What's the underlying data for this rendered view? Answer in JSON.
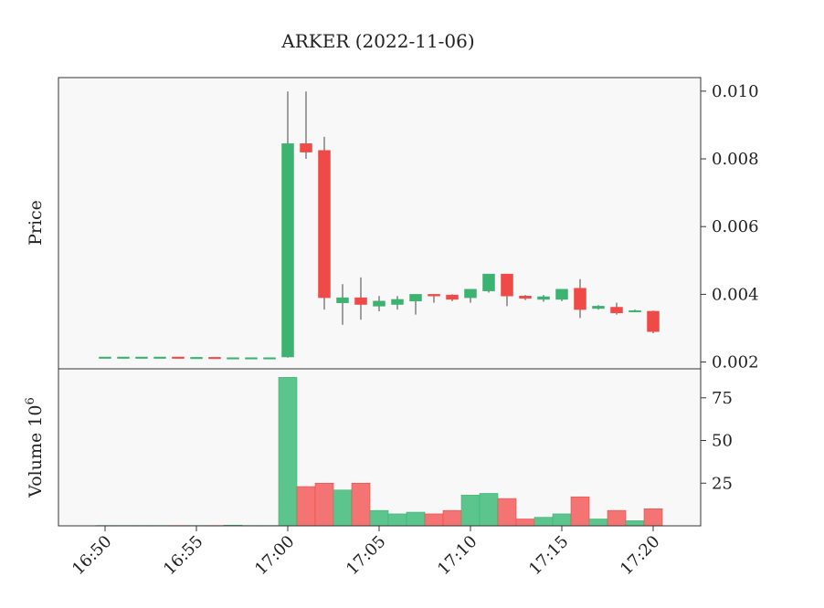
{
  "chart_data": {
    "type": "candlestick",
    "title": "ARKER (2022-11-06)",
    "price_panel": {
      "ylabel": "Price",
      "ylim": [
        0.0018,
        0.0104
      ],
      "yticks": [
        0.002,
        0.004,
        0.006,
        0.008,
        0.01
      ],
      "ytick_labels": [
        "0.002",
        "0.004",
        "0.006",
        "0.008",
        "0.010"
      ]
    },
    "volume_panel": {
      "ylabel": "Volume",
      "ylabel_exponent": "6",
      "ylim": [
        0,
        92
      ],
      "yticks": [
        25,
        50,
        75
      ],
      "ytick_labels": [
        "25",
        "50",
        "75"
      ]
    },
    "x_ticks": [
      {
        "minute": 0,
        "label": "16:50"
      },
      {
        "minute": 5,
        "label": "16:55"
      },
      {
        "minute": 10,
        "label": "17:00"
      },
      {
        "minute": 15,
        "label": "17:05"
      },
      {
        "minute": 20,
        "label": "17:10"
      },
      {
        "minute": 25,
        "label": "17:15"
      },
      {
        "minute": 30,
        "label": "17:20"
      }
    ],
    "colors": {
      "up": "#3cb371",
      "down": "#f04a48",
      "up_volume": "#5bc58d",
      "down_volume": "#f37472",
      "wick": "#444444"
    },
    "candles": [
      {
        "t": "16:50",
        "o": 0.00215,
        "h": 0.00215,
        "l": 0.00215,
        "c": 0.00215,
        "v": 0.2
      },
      {
        "t": "16:51",
        "o": 0.00215,
        "h": 0.00215,
        "l": 0.00215,
        "c": 0.00215,
        "v": 0.2
      },
      {
        "t": "16:52",
        "o": 0.00215,
        "h": 0.00215,
        "l": 0.00215,
        "c": 0.00215,
        "v": 0.2
      },
      {
        "t": "16:53",
        "o": 0.00214,
        "h": 0.00214,
        "l": 0.00214,
        "c": 0.00215,
        "v": 0.2
      },
      {
        "t": "16:54",
        "o": 0.00215,
        "h": 0.00215,
        "l": 0.00214,
        "c": 0.00214,
        "v": 0.2
      },
      {
        "t": "16:55",
        "o": 0.00214,
        "h": 0.00214,
        "l": 0.00214,
        "c": 0.00214,
        "v": 0.2
      },
      {
        "t": "16:56",
        "o": 0.00214,
        "h": 0.00214,
        "l": 0.00213,
        "c": 0.00213,
        "v": 0.2
      },
      {
        "t": "16:57",
        "o": 0.00213,
        "h": 0.00213,
        "l": 0.00213,
        "c": 0.00213,
        "v": 0.4
      },
      {
        "t": "16:58",
        "o": 0.00213,
        "h": 0.00213,
        "l": 0.00213,
        "c": 0.00213,
        "v": 0.2
      },
      {
        "t": "16:59",
        "o": 0.00213,
        "h": 0.00213,
        "l": 0.00213,
        "c": 0.00213,
        "v": 0.2
      },
      {
        "t": "17:00",
        "o": 0.00215,
        "h": 0.00999,
        "l": 0.00213,
        "c": 0.00845,
        "v": 87
      },
      {
        "t": "17:01",
        "o": 0.00845,
        "h": 0.00999,
        "l": 0.008,
        "c": 0.0082,
        "v": 23
      },
      {
        "t": "17:02",
        "o": 0.00825,
        "h": 0.00865,
        "l": 0.00355,
        "c": 0.0039,
        "v": 25
      },
      {
        "t": "17:03",
        "o": 0.00375,
        "h": 0.0043,
        "l": 0.0031,
        "c": 0.0039,
        "v": 21
      },
      {
        "t": "17:04",
        "o": 0.0039,
        "h": 0.0045,
        "l": 0.00325,
        "c": 0.0037,
        "v": 25
      },
      {
        "t": "17:05",
        "o": 0.00365,
        "h": 0.00395,
        "l": 0.0035,
        "c": 0.0038,
        "v": 9
      },
      {
        "t": "17:06",
        "o": 0.0037,
        "h": 0.00395,
        "l": 0.00355,
        "c": 0.00385,
        "v": 7
      },
      {
        "t": "17:07",
        "o": 0.0038,
        "h": 0.004,
        "l": 0.0034,
        "c": 0.004,
        "v": 8
      },
      {
        "t": "17:08",
        "o": 0.004,
        "h": 0.004,
        "l": 0.00375,
        "c": 0.00395,
        "v": 7
      },
      {
        "t": "17:09",
        "o": 0.00398,
        "h": 0.004,
        "l": 0.0038,
        "c": 0.00385,
        "v": 9
      },
      {
        "t": "17:10",
        "o": 0.0039,
        "h": 0.00415,
        "l": 0.00375,
        "c": 0.00415,
        "v": 18
      },
      {
        "t": "17:11",
        "o": 0.0041,
        "h": 0.0046,
        "l": 0.00405,
        "c": 0.0046,
        "v": 19
      },
      {
        "t": "17:12",
        "o": 0.0046,
        "h": 0.0046,
        "l": 0.00365,
        "c": 0.00395,
        "v": 16
      },
      {
        "t": "17:13",
        "o": 0.00395,
        "h": 0.00398,
        "l": 0.00383,
        "c": 0.00388,
        "v": 4
      },
      {
        "t": "17:14",
        "o": 0.00385,
        "h": 0.00398,
        "l": 0.00378,
        "c": 0.00393,
        "v": 5
      },
      {
        "t": "17:15",
        "o": 0.00385,
        "h": 0.00415,
        "l": 0.0038,
        "c": 0.00415,
        "v": 7
      },
      {
        "t": "17:16",
        "o": 0.00418,
        "h": 0.00445,
        "l": 0.0033,
        "c": 0.00355,
        "v": 17
      },
      {
        "t": "17:17",
        "o": 0.00358,
        "h": 0.00368,
        "l": 0.00355,
        "c": 0.00365,
        "v": 4
      },
      {
        "t": "17:18",
        "o": 0.00362,
        "h": 0.00375,
        "l": 0.0034,
        "c": 0.00345,
        "v": 9
      },
      {
        "t": "17:19",
        "o": 0.00348,
        "h": 0.00355,
        "l": 0.00348,
        "c": 0.00352,
        "v": 3
      },
      {
        "t": "17:20",
        "o": 0.0035,
        "h": 0.00352,
        "l": 0.00285,
        "c": 0.0029,
        "v": 10
      }
    ]
  }
}
